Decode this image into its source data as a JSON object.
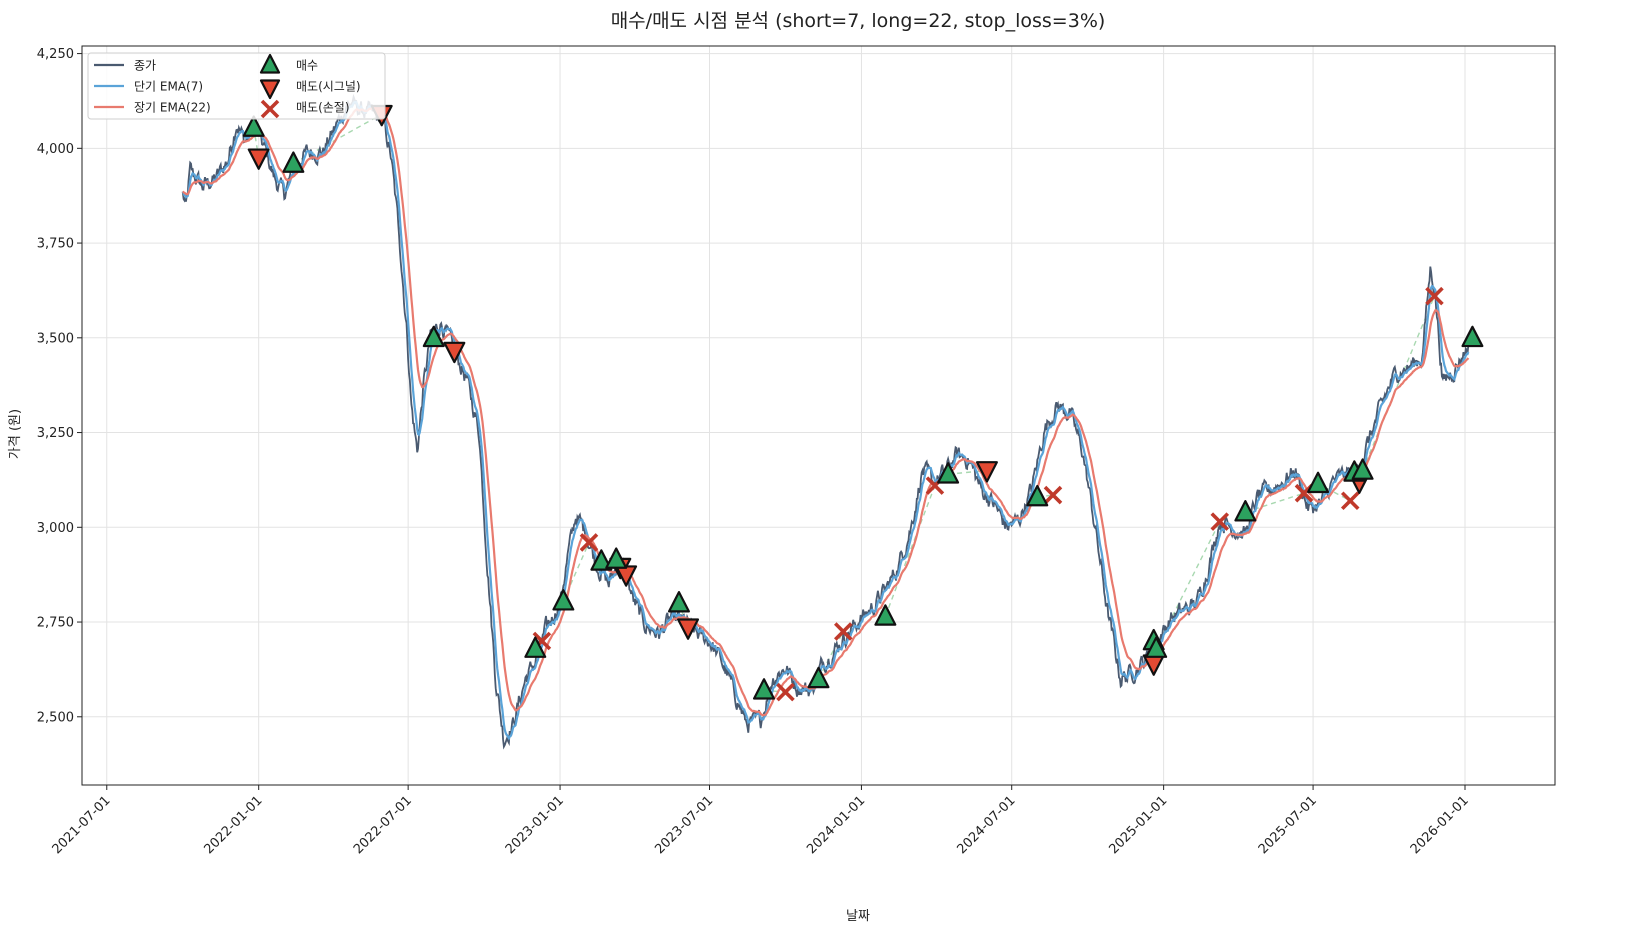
{
  "chart_data": {
    "type": "line",
    "title": "매수/매도 시점 분석 (short=7, long=22, stop_loss=3%)",
    "xlabel": "날짜",
    "ylabel": "가격 (원)",
    "xlim": [
      "2021-06-01",
      "2026-04-20"
    ],
    "ylim": [
      2320,
      4270
    ],
    "grid": true,
    "legend_position": "top-left",
    "x_ticks": [
      "2021-07-01",
      "2022-01-01",
      "2022-07-01",
      "2023-01-01",
      "2023-07-01",
      "2024-01-01",
      "2024-07-01",
      "2025-01-01",
      "2025-07-01",
      "2026-01-01"
    ],
    "y_ticks": [
      2500,
      2750,
      3000,
      3250,
      3500,
      3750,
      4000,
      4250
    ],
    "y_tick_labels": [
      "2,500",
      "2,750",
      "3,000",
      "3,250",
      "3,500",
      "3,750",
      "4,000",
      "4,250"
    ],
    "colors": {
      "close": "#4a5a70",
      "ema_short": "#5aa3d8",
      "ema_long": "#e87a6e",
      "buy": "#2ca25f",
      "sell_signal": "#e34a33",
      "sell_stop": "#c0392b",
      "trade_link": "#a8d8b0"
    },
    "legend": [
      {
        "label": "종가",
        "kind": "line",
        "color_key": "close"
      },
      {
        "label": "단기 EMA(7)",
        "kind": "line",
        "color_key": "ema_short"
      },
      {
        "label": "장기 EMA(22)",
        "kind": "line",
        "color_key": "ema_long"
      },
      {
        "label": "매수",
        "kind": "buy"
      },
      {
        "label": "매도(시그널)",
        "kind": "sell_signal"
      },
      {
        "label": "매도(손절)",
        "kind": "sell_stop"
      }
    ],
    "close_anchors": [
      [
        "2021-10-01",
        3880
      ],
      [
        "2021-10-05",
        3840
      ],
      [
        "2021-10-10",
        3940
      ],
      [
        "2021-10-25",
        3900
      ],
      [
        "2021-11-10",
        3920
      ],
      [
        "2021-11-25",
        3970
      ],
      [
        "2021-12-05",
        4070
      ],
      [
        "2021-12-15",
        4020
      ],
      [
        "2021-12-28",
        4050
      ],
      [
        "2022-01-10",
        3990
      ],
      [
        "2022-01-20",
        3920
      ],
      [
        "2022-02-01",
        3880
      ],
      [
        "2022-02-15",
        3960
      ],
      [
        "2022-03-01",
        3990
      ],
      [
        "2022-03-20",
        3990
      ],
      [
        "2022-04-05",
        4060
      ],
      [
        "2022-04-20",
        4120
      ],
      [
        "2022-05-05",
        4100
      ],
      [
        "2022-05-20",
        4090
      ],
      [
        "2022-06-01",
        4070
      ],
      [
        "2022-06-10",
        3980
      ],
      [
        "2022-06-20",
        3780
      ],
      [
        "2022-06-30",
        3500
      ],
      [
        "2022-07-05",
        3320
      ],
      [
        "2022-07-12",
        3200
      ],
      [
        "2022-07-20",
        3380
      ],
      [
        "2022-07-28",
        3500
      ],
      [
        "2022-08-10",
        3540
      ],
      [
        "2022-08-25",
        3470
      ],
      [
        "2022-09-10",
        3390
      ],
      [
        "2022-09-25",
        3250
      ],
      [
        "2022-10-05",
        2900
      ],
      [
        "2022-10-15",
        2600
      ],
      [
        "2022-10-25",
        2440
      ],
      [
        "2022-11-05",
        2480
      ],
      [
        "2022-11-20",
        2600
      ],
      [
        "2022-12-01",
        2640
      ],
      [
        "2022-12-15",
        2730
      ],
      [
        "2023-01-01",
        2800
      ],
      [
        "2023-01-10",
        2920
      ],
      [
        "2023-01-20",
        3030
      ],
      [
        "2023-02-01",
        2990
      ],
      [
        "2023-02-15",
        2900
      ],
      [
        "2023-03-01",
        2850
      ],
      [
        "2023-03-15",
        2920
      ],
      [
        "2023-04-01",
        2800
      ],
      [
        "2023-04-15",
        2740
      ],
      [
        "2023-05-01",
        2720
      ],
      [
        "2023-05-15",
        2760
      ],
      [
        "2023-06-01",
        2750
      ],
      [
        "2023-06-15",
        2720
      ],
      [
        "2023-07-01",
        2700
      ],
      [
        "2023-07-15",
        2650
      ],
      [
        "2023-08-01",
        2560
      ],
      [
        "2023-08-15",
        2480
      ],
      [
        "2023-09-01",
        2490
      ],
      [
        "2023-09-15",
        2600
      ],
      [
        "2023-10-01",
        2630
      ],
      [
        "2023-10-15",
        2580
      ],
      [
        "2023-11-01",
        2570
      ],
      [
        "2023-11-15",
        2640
      ],
      [
        "2023-12-01",
        2680
      ],
      [
        "2023-12-15",
        2720
      ],
      [
        "2024-01-01",
        2760
      ],
      [
        "2024-01-15",
        2790
      ],
      [
        "2024-02-01",
        2840
      ],
      [
        "2024-02-15",
        2900
      ],
      [
        "2024-03-01",
        3000
      ],
      [
        "2024-03-15",
        3150
      ],
      [
        "2024-03-28",
        3120
      ],
      [
        "2024-04-10",
        3140
      ],
      [
        "2024-04-25",
        3190
      ],
      [
        "2024-05-10",
        3180
      ],
      [
        "2024-05-25",
        3100
      ],
      [
        "2024-06-10",
        3060
      ],
      [
        "2024-06-25",
        3000
      ],
      [
        "2024-07-10",
        3020
      ],
      [
        "2024-07-25",
        3100
      ],
      [
        "2024-08-10",
        3260
      ],
      [
        "2024-08-25",
        3320
      ],
      [
        "2024-09-10",
        3300
      ],
      [
        "2024-09-25",
        3200
      ],
      [
        "2024-10-10",
        3000
      ],
      [
        "2024-10-25",
        2780
      ],
      [
        "2024-11-10",
        2600
      ],
      [
        "2024-11-25",
        2620
      ],
      [
        "2024-12-10",
        2650
      ],
      [
        "2024-12-25",
        2700
      ],
      [
        "2025-01-10",
        2760
      ],
      [
        "2025-01-25",
        2780
      ],
      [
        "2025-02-10",
        2800
      ],
      [
        "2025-02-25",
        2900
      ],
      [
        "2025-03-10",
        3020
      ],
      [
        "2025-03-25",
        3000
      ],
      [
        "2025-04-10",
        2980
      ],
      [
        "2025-04-25",
        3080
      ],
      [
        "2025-05-10",
        3100
      ],
      [
        "2025-05-25",
        3120
      ],
      [
        "2025-06-10",
        3150
      ],
      [
        "2025-06-25",
        3050
      ],
      [
        "2025-07-10",
        3060
      ],
      [
        "2025-07-25",
        3120
      ],
      [
        "2025-08-10",
        3140
      ],
      [
        "2025-08-25",
        3150
      ],
      [
        "2025-09-10",
        3250
      ],
      [
        "2025-09-25",
        3340
      ],
      [
        "2025-10-10",
        3410
      ],
      [
        "2025-10-25",
        3420
      ],
      [
        "2025-11-10",
        3450
      ],
      [
        "2025-11-20",
        3680
      ],
      [
        "2025-11-25",
        3640
      ],
      [
        "2025-12-05",
        3380
      ],
      [
        "2025-12-20",
        3420
      ],
      [
        "2026-01-05",
        3480
      ]
    ],
    "buy_signals": [
      [
        "2021-12-26",
        4055
      ],
      [
        "2022-02-12",
        3960
      ],
      [
        "2022-08-01",
        3500
      ],
      [
        "2022-12-02",
        2680
      ],
      [
        "2023-01-05",
        2805
      ],
      [
        "2023-02-20",
        2910
      ],
      [
        "2023-03-10",
        2915
      ],
      [
        "2023-05-25",
        2800
      ],
      [
        "2023-09-05",
        2570
      ],
      [
        "2023-11-10",
        2600
      ],
      [
        "2024-01-30",
        2765
      ],
      [
        "2024-04-15",
        3140
      ],
      [
        "2024-08-01",
        3080
      ],
      [
        "2024-12-20",
        2700
      ],
      [
        "2024-12-23",
        2680
      ],
      [
        "2025-04-10",
        3040
      ],
      [
        "2025-07-07",
        3115
      ],
      [
        "2025-08-20",
        3145
      ],
      [
        "2025-08-30",
        3150
      ],
      [
        "2026-01-10",
        3500
      ]
    ],
    "sell_signals": [
      [
        "2022-01-01",
        3975
      ],
      [
        "2022-05-30",
        4090
      ],
      [
        "2022-08-26",
        3465
      ],
      [
        "2023-03-15",
        2895
      ],
      [
        "2023-03-22",
        2875
      ],
      [
        "2023-06-05",
        2735
      ],
      [
        "2024-06-01",
        3150
      ],
      [
        "2024-12-20",
        2640
      ],
      [
        "2025-08-26",
        3120
      ]
    ],
    "stop_loss_sells": [
      [
        "2022-12-10",
        2700
      ],
      [
        "2023-02-05",
        2960
      ],
      [
        "2023-10-01",
        2565
      ],
      [
        "2023-12-10",
        2725
      ],
      [
        "2024-03-30",
        3110
      ],
      [
        "2024-08-20",
        3085
      ],
      [
        "2025-03-10",
        3015
      ],
      [
        "2025-06-20",
        3090
      ],
      [
        "2025-08-15",
        3070
      ],
      [
        "2025-11-25",
        3610
      ]
    ]
  }
}
